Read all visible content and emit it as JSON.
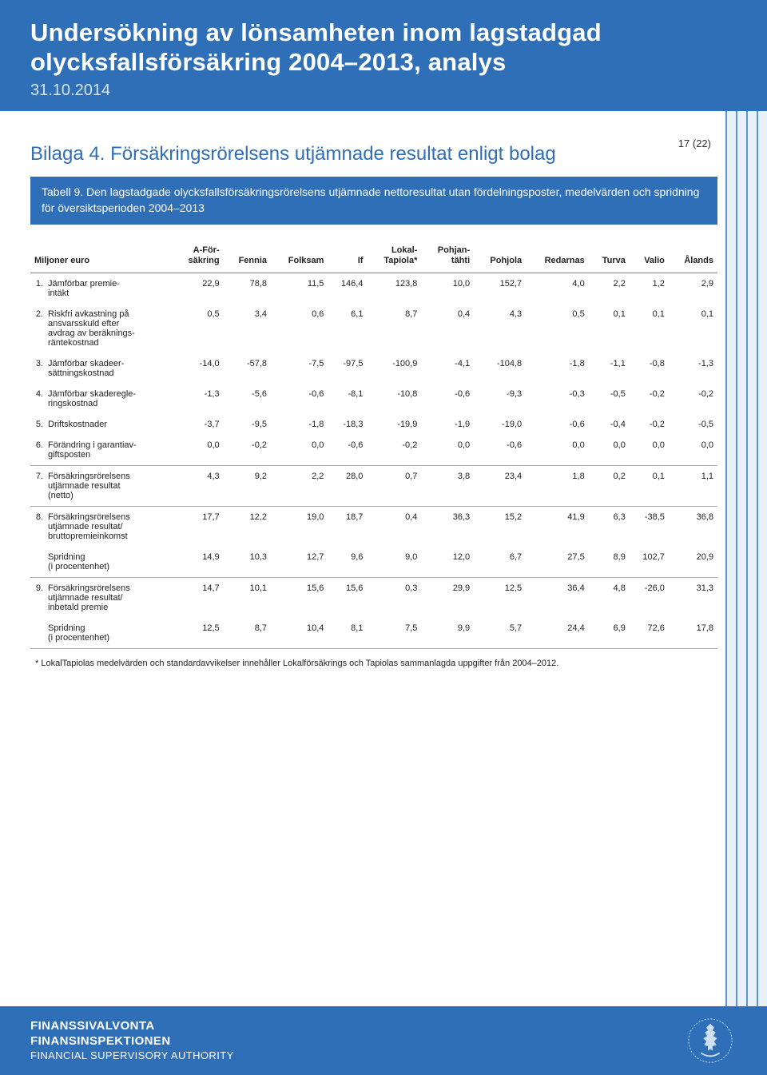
{
  "page_number": "17 (22)",
  "header": {
    "title_line1": "Undersökning av lönsamheten inom lagstadgad",
    "title_line2": "olycksfallsförsäkring 2004–2013, analys",
    "date": "31.10.2014"
  },
  "section": {
    "title": "Bilaga 4. Försäkringsrörelsens utjämnade resultat enligt bolag",
    "caption": "Tabell 9. Den lagstadgade olycksfallsförsäkringsrörelsens utjämnade nettoresultat utan fördelningsposter, medelvärden och spridning för översiktsperioden 2004–2013"
  },
  "table": {
    "row_header": "Miljoner euro",
    "columns": [
      "A-För-\nsäkring",
      "Fennia",
      "Folksam",
      "If",
      "Lokal-\nTapiola*",
      "Pohjan-\ntähti",
      "Pohjola",
      "Redarnas",
      "Turva",
      "Valio",
      "Ålands"
    ],
    "rows": [
      {
        "n": "1.",
        "label": "Jämförbar premie-\nintäkt",
        "v": [
          "22,9",
          "78,8",
          "11,5",
          "146,4",
          "123,8",
          "10,0",
          "152,7",
          "4,0",
          "2,2",
          "1,2",
          "2,9"
        ]
      },
      {
        "n": "2.",
        "label": "Riskfri avkastning på\nansvarsskuld efter\navdrag av beräknings-\nräntekostnad",
        "v": [
          "0,5",
          "3,4",
          "0,6",
          "6,1",
          "8,7",
          "0,4",
          "4,3",
          "0,5",
          "0,1",
          "0,1",
          "0,1"
        ]
      },
      {
        "n": "3.",
        "label": "Jämförbar skadeer-\nsättningskostnad",
        "v": [
          "-14,0",
          "-57,8",
          "-7,5",
          "-97,5",
          "-100,9",
          "-4,1",
          "-104,8",
          "-1,8",
          "-1,1",
          "-0,8",
          "-1,3"
        ]
      },
      {
        "n": "4.",
        "label": "Jämförbar skaderegle-\nringskostnad",
        "v": [
          "-1,3",
          "-5,6",
          "-0,6",
          "-8,1",
          "-10,8",
          "-0,6",
          "-9,3",
          "-0,3",
          "-0,5",
          "-0,2",
          "-0,2"
        ]
      },
      {
        "n": "5.",
        "label": "Driftskostnader",
        "v": [
          "-3,7",
          "-9,5",
          "-1,8",
          "-18,3",
          "-19,9",
          "-1,9",
          "-19,0",
          "-0,6",
          "-0,4",
          "-0,2",
          "-0,5"
        ]
      },
      {
        "n": "6.",
        "label": "Förändring i garantiav-\ngiftsposten",
        "v": [
          "0,0",
          "-0,2",
          "0,0",
          "-0,6",
          "-0,2",
          "0,0",
          "-0,6",
          "0,0",
          "0,0",
          "0,0",
          "0,0"
        ],
        "sep": true
      },
      {
        "n": "7.",
        "label": "Försäkringsrörelsens\nutjämnade resultat\n(netto)",
        "v": [
          "4,3",
          "9,2",
          "2,2",
          "28,0",
          "0,7",
          "3,8",
          "23,4",
          "1,8",
          "0,2",
          "0,1",
          "1,1"
        ],
        "sep": true
      },
      {
        "n": "8.",
        "label": "Försäkringsrörelsens\nutjämnade resultat/\nbruttopremieinkomst",
        "v": [
          "17,7",
          "12,2",
          "19,0",
          "18,7",
          "0,4",
          "36,3",
          "15,2",
          "41,9",
          "6,3",
          "-38,5",
          "36,8"
        ]
      },
      {
        "n": "",
        "label": "Spridning\n(i procentenhet)",
        "v": [
          "14,9",
          "10,3",
          "12,7",
          "9,6",
          "9,0",
          "12,0",
          "6,7",
          "27,5",
          "8,9",
          "102,7",
          "20,9"
        ],
        "sep": true
      },
      {
        "n": "9.",
        "label": "Försäkringsrörelsens\nutjämnade resultat/\ninbetald premie",
        "v": [
          "14,7",
          "10,1",
          "15,6",
          "15,6",
          "0,3",
          "29,9",
          "12,5",
          "36,4",
          "4,8",
          "-26,0",
          "31,3"
        ]
      },
      {
        "n": "",
        "label": "Spridning\n(i procentenhet)",
        "v": [
          "12,5",
          "8,7",
          "10,4",
          "8,1",
          "7,5",
          "9,9",
          "5,7",
          "24,4",
          "6,9",
          "72,6",
          "17,8"
        ],
        "sep": true
      }
    ],
    "footnote": "* LokalTapiolas medelvärden och standardavvikelser innehåller Lokalförsäkrings och Tapiolas sammanlagda uppgifter från 2004–2012."
  },
  "footer": {
    "line1": "FINANSSIVALVONTA",
    "line2": "FINANSINSPEKTIONEN",
    "line3": "FINANCIAL SUPERVISORY AUTHORITY"
  },
  "colors": {
    "brand_blue": "#2f6fb7",
    "stripe_light": "#eaf1fa",
    "stripe_dark": "#5a96d7"
  }
}
